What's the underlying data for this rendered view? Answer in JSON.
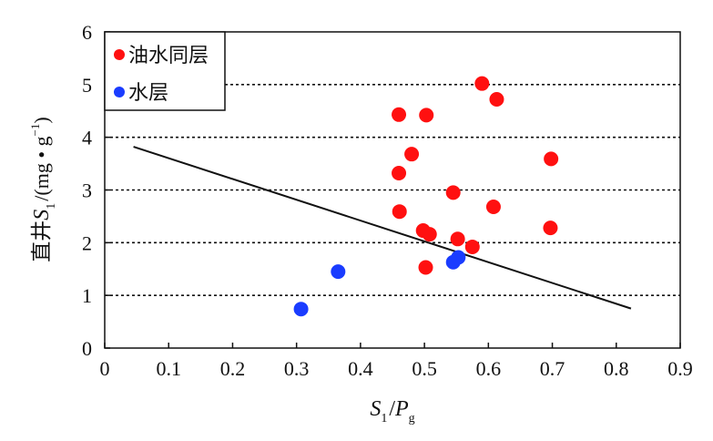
{
  "chart_data": {
    "type": "scatter",
    "xlabel": {
      "main": "S",
      "sub": "1",
      "sep": "/",
      "main2": "P",
      "sub2": "g"
    },
    "ylabel": {
      "prefix": "直井",
      "main": "S",
      "sub": "1",
      "unit_open": "/(mg • g",
      "sup": "−1",
      "unit_close": ")"
    },
    "xlim": [
      0,
      0.9
    ],
    "ylim": [
      0,
      6
    ],
    "x_ticks": [
      "0",
      "0.1",
      "0.2",
      "0.3",
      "0.4",
      "0.5",
      "0.6",
      "0.7",
      "0.8",
      "0.9"
    ],
    "y_ticks": [
      "0",
      "1",
      "2",
      "3",
      "4",
      "5",
      "6"
    ],
    "grid": {
      "y_dashed_at": [
        1,
        2,
        3,
        4,
        5
      ]
    },
    "legend_placement": "top-left",
    "series": [
      {
        "name": "油水同层",
        "color": "#ff1010",
        "points": [
          {
            "x": 0.46,
            "y": 4.43
          },
          {
            "x": 0.503,
            "y": 4.42
          },
          {
            "x": 0.59,
            "y": 5.02
          },
          {
            "x": 0.613,
            "y": 4.72
          },
          {
            "x": 0.48,
            "y": 3.68
          },
          {
            "x": 0.46,
            "y": 3.32
          },
          {
            "x": 0.545,
            "y": 2.95
          },
          {
            "x": 0.698,
            "y": 3.59
          },
          {
            "x": 0.461,
            "y": 2.59
          },
          {
            "x": 0.608,
            "y": 2.68
          },
          {
            "x": 0.498,
            "y": 2.23
          },
          {
            "x": 0.508,
            "y": 2.16
          },
          {
            "x": 0.552,
            "y": 2.07
          },
          {
            "x": 0.575,
            "y": 1.92
          },
          {
            "x": 0.697,
            "y": 2.28
          },
          {
            "x": 0.502,
            "y": 1.53
          }
        ]
      },
      {
        "name": "水层",
        "color": "#1a3cff",
        "points": [
          {
            "x": 0.307,
            "y": 0.74
          },
          {
            "x": 0.365,
            "y": 1.45
          },
          {
            "x": 0.545,
            "y": 1.63
          },
          {
            "x": 0.553,
            "y": 1.72
          }
        ]
      }
    ],
    "trend_line": {
      "x1": 0.045,
      "y1": 3.82,
      "x2": 0.823,
      "y2": 0.75
    }
  }
}
